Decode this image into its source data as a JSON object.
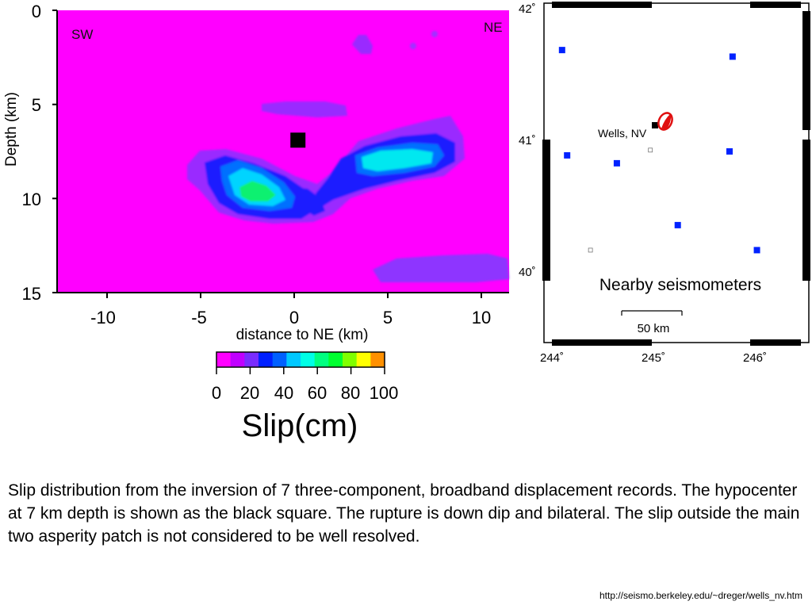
{
  "slip_plot": {
    "corner_left": "SW",
    "corner_right": "NE",
    "ylabel": "Depth (km)",
    "xlabel": "distance to NE (km)",
    "y_ticks": [
      "0",
      "5",
      "10",
      "15"
    ],
    "x_ticks": [
      "-10",
      "-5",
      "0",
      "5",
      "10"
    ],
    "hypocenter": {
      "x_km": 0.2,
      "depth_km": 6.9
    },
    "background_color": "#ff00ff"
  },
  "colorbar": {
    "tick_labels": [
      "0",
      "20",
      "40",
      "60",
      "80",
      "100"
    ],
    "title": "Slip(cm)",
    "colors": [
      "#ff00ff",
      "#c000ff",
      "#7a2cff",
      "#0020ff",
      "#0060ff",
      "#00c8ff",
      "#00ffe6",
      "#00ff80",
      "#00ff30",
      "#80ff00",
      "#ffff00",
      "#ff9000"
    ]
  },
  "map": {
    "lat_labels": [
      "42˚",
      "41˚",
      "40˚"
    ],
    "lon_labels": [
      "244˚",
      "245˚",
      "246˚"
    ],
    "place_label": "Wells, NV",
    "legend_text": "Nearby seismometers",
    "scale_label": "50 km",
    "station_color": "#0022ff",
    "stations": [
      {
        "lon": 244.1,
        "lat": 41.68
      },
      {
        "lon": 245.78,
        "lat": 41.63
      },
      {
        "lon": 244.15,
        "lat": 40.88
      },
      {
        "lon": 244.64,
        "lat": 40.82
      },
      {
        "lon": 245.75,
        "lat": 40.91
      },
      {
        "lon": 245.24,
        "lat": 40.35
      },
      {
        "lon": 246.02,
        "lat": 40.16
      }
    ],
    "open_stations": [
      {
        "lon": 244.97,
        "lat": 40.92
      },
      {
        "lon": 244.38,
        "lat": 40.16
      }
    ]
  },
  "caption": "Slip distribution from the inversion of 7 three-component, broadband displacement records. The hypocenter at 7 km depth is shown as the black square. The rupture is down dip and bilateral. The slip outside the main two asperity patch is not considered to be well resolved.",
  "source_url": "http://seismo.berkeley.edu/~dreger/wells_nv.htm"
}
